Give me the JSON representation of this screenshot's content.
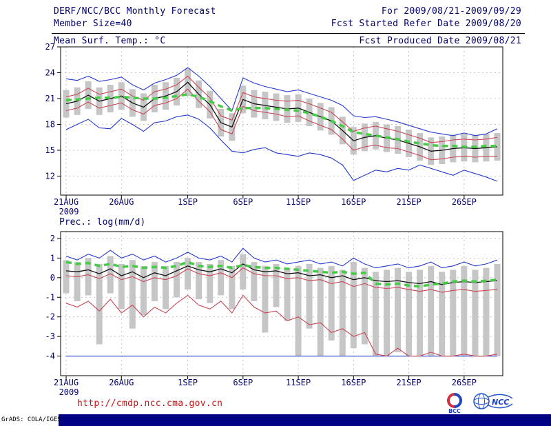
{
  "header": {
    "title": "DERF/NCC/BCC Monthly Forecast",
    "period": "For 2009/08/21-2009/09/29",
    "member_size": "Member Size=40",
    "refer_date": "Fcst Started Refer Date 2009/08/20",
    "produced_date": "Fcst Produced Date 2009/08/21"
  },
  "footer": {
    "url": "http://cmdp.ncc.cma.gov.cn",
    "grads_credit": "GrADS: COLA/IGES",
    "logos": [
      {
        "label": "BCC"
      },
      {
        "label": "NCC"
      }
    ]
  },
  "colors": {
    "text_navy": "#00006b",
    "line_blue": "#2438cc",
    "line_red": "#c84455",
    "line_black": "#111111",
    "line_green": "#44cc44",
    "bar_gray": "#c6c6c6",
    "url_red": "#cc1111",
    "bottom_bar_navy": "#000085"
  },
  "chart_data": [
    {
      "type": "line",
      "panel_name": "temperature-panel",
      "title": "Mean Surf. Temp.: °C",
      "ylabel": "°C",
      "ylim": [
        9.8,
        27
      ],
      "y_ticks": [
        27,
        24,
        21,
        18,
        15,
        12
      ],
      "n_days": 40,
      "x_tick_labels": [
        "21AUG",
        "26AUG",
        "1SEP",
        "6SEP",
        "11SEP",
        "16SEP",
        "21SEP",
        "26SEP"
      ],
      "x_tick_days": [
        0,
        5,
        11,
        16,
        21,
        26,
        31,
        36
      ],
      "year_label": "2009",
      "grid": true,
      "bars": {
        "color": "#c6c6c6",
        "top": [
          22.0,
          22.3,
          23.0,
          22.3,
          22.6,
          22.9,
          22.1,
          21.6,
          22.6,
          22.9,
          23.4,
          24.5,
          23.1,
          21.9,
          19.8,
          19.3,
          22.5,
          22.0,
          21.8,
          21.6,
          21.4,
          21.5,
          21.0,
          20.5,
          20.0,
          18.9,
          17.7,
          18.1,
          18.3,
          18.0,
          17.8,
          17.4,
          17.0,
          16.5,
          16.6,
          16.8,
          16.9,
          16.8,
          16.9,
          17.0
        ],
        "bottom": [
          18.8,
          19.1,
          19.8,
          19.1,
          19.4,
          19.7,
          18.9,
          18.4,
          19.4,
          19.7,
          20.2,
          21.3,
          19.9,
          18.7,
          16.6,
          16.1,
          19.3,
          18.8,
          18.6,
          18.4,
          18.2,
          18.3,
          17.8,
          17.3,
          16.8,
          15.7,
          14.5,
          14.9,
          15.1,
          14.8,
          14.6,
          14.2,
          13.8,
          13.3,
          13.4,
          13.6,
          13.7,
          13.6,
          13.7,
          13.8
        ]
      },
      "series": [
        {
          "name": "ensemble-max-line",
          "color": "#2438cc",
          "width": 1.1,
          "dash": "",
          "values": [
            23.3,
            23.1,
            23.6,
            23.0,
            23.2,
            23.5,
            22.6,
            22.0,
            22.8,
            23.2,
            23.7,
            24.6,
            23.6,
            22.4,
            21.0,
            19.6,
            23.4,
            22.8,
            22.4,
            22.1,
            21.8,
            22.0,
            21.6,
            21.2,
            20.8,
            20.2,
            19.0,
            18.8,
            18.9,
            18.6,
            18.3,
            17.9,
            17.5,
            17.1,
            16.9,
            16.7,
            17.0,
            16.7,
            16.9,
            17.5
          ]
        },
        {
          "name": "ensemble-min-line",
          "color": "#2438cc",
          "width": 1.1,
          "dash": "",
          "values": [
            17.4,
            18.0,
            18.6,
            17.6,
            17.5,
            18.7,
            18.0,
            17.2,
            18.2,
            18.4,
            18.9,
            19.1,
            18.6,
            17.6,
            16.2,
            14.9,
            14.7,
            15.1,
            15.3,
            14.7,
            14.5,
            14.3,
            14.7,
            14.5,
            14.1,
            13.3,
            11.5,
            12.1,
            12.7,
            12.5,
            12.9,
            12.7,
            13.3,
            12.9,
            12.5,
            12.1,
            12.7,
            12.3,
            11.9,
            11.4
          ]
        },
        {
          "name": "upper-spread-line",
          "color": "#c84455",
          "width": 1.1,
          "dash": "",
          "values": [
            21.2,
            21.5,
            22.2,
            21.5,
            21.8,
            22.1,
            21.3,
            20.8,
            21.8,
            22.1,
            22.6,
            23.6,
            22.3,
            21.1,
            19.0,
            18.5,
            21.7,
            21.2,
            21.0,
            20.8,
            20.7,
            20.8,
            20.4,
            19.9,
            19.4,
            18.3,
            17.2,
            17.6,
            17.8,
            17.5,
            17.2,
            16.8,
            16.4,
            15.9,
            16.0,
            16.2,
            16.3,
            16.2,
            16.3,
            16.5
          ]
        },
        {
          "name": "lower-spread-line",
          "color": "#c84455",
          "width": 1.1,
          "dash": "",
          "values": [
            19.6,
            19.9,
            20.6,
            19.9,
            20.2,
            20.5,
            19.7,
            19.2,
            20.2,
            20.5,
            21.0,
            22.1,
            20.7,
            19.5,
            17.4,
            16.9,
            20.1,
            19.6,
            19.4,
            19.2,
            18.9,
            19.0,
            18.4,
            17.9,
            17.4,
            16.3,
            15.0,
            15.4,
            15.6,
            15.3,
            15.2,
            14.8,
            14.4,
            13.9,
            14.0,
            14.2,
            14.3,
            14.2,
            14.3,
            14.3
          ]
        },
        {
          "name": "ensemble-mean-line",
          "color": "#111111",
          "width": 1.3,
          "dash": "",
          "values": [
            20.4,
            20.7,
            21.4,
            20.7,
            21.0,
            21.3,
            20.5,
            20.0,
            21.0,
            21.3,
            21.8,
            22.9,
            21.5,
            20.3,
            18.2,
            17.7,
            20.9,
            20.4,
            20.2,
            20.0,
            19.8,
            19.9,
            19.4,
            18.9,
            18.4,
            17.3,
            16.1,
            16.5,
            16.7,
            16.4,
            16.2,
            15.8,
            15.4,
            14.9,
            15.0,
            15.2,
            15.3,
            15.2,
            15.3,
            15.4
          ]
        },
        {
          "name": "climatology-dashed-line",
          "color": "#44cc44",
          "width": 3.5,
          "dash": "8,6",
          "values": [
            20.8,
            20.9,
            21.0,
            21.1,
            21.1,
            21.2,
            21.1,
            21.0,
            21.0,
            21.1,
            21.3,
            21.5,
            21.2,
            20.7,
            20.1,
            19.6,
            19.9,
            19.9,
            19.9,
            19.8,
            19.7,
            19.6,
            19.3,
            18.9,
            18.4,
            17.8,
            17.1,
            16.9,
            16.7,
            16.5,
            16.3,
            16.0,
            15.8,
            15.6,
            15.5,
            15.5,
            15.4,
            15.4,
            15.5,
            15.5
          ]
        }
      ]
    },
    {
      "type": "line",
      "panel_name": "precipitation-panel",
      "title": "Prec.: log(mm/d)",
      "ylabel": "log(mm/d)",
      "ylim": [
        -5,
        2.35
      ],
      "y_ticks": [
        2,
        1,
        0,
        -1,
        -2,
        -3,
        -4
      ],
      "n_days": 40,
      "x_tick_labels": [
        "21AUG",
        "26AUG",
        "1SEP",
        "6SEP",
        "11SEP",
        "16SEP",
        "21SEP",
        "26SEP"
      ],
      "x_tick_days": [
        0,
        5,
        11,
        16,
        21,
        26,
        31,
        36
      ],
      "year_label": "2009",
      "grid": true,
      "bars": {
        "color": "#c6c6c6",
        "top": [
          0.9,
          0.8,
          1.0,
          0.7,
          1.1,
          0.7,
          0.9,
          0.6,
          0.8,
          0.6,
          0.8,
          1.0,
          0.8,
          0.7,
          0.9,
          0.6,
          1.2,
          0.8,
          0.6,
          0.7,
          0.5,
          0.6,
          0.7,
          0.5,
          0.6,
          0.4,
          0.8,
          0.5,
          0.3,
          0.4,
          0.5,
          0.3,
          0.4,
          0.6,
          0.3,
          0.4,
          0.6,
          0.4,
          0.5,
          0.7
        ],
        "bottom": [
          -0.8,
          -1.2,
          -0.9,
          -3.4,
          -0.8,
          -1.6,
          -2.6,
          -1.9,
          -1.2,
          -1.6,
          -1.0,
          -0.6,
          -1.1,
          -1.3,
          -0.9,
          -1.6,
          -0.6,
          -1.2,
          -2.8,
          -1.5,
          -2.2,
          -4.0,
          -2.6,
          -4.0,
          -3.2,
          -4.0,
          -3.6,
          -3.4,
          -4.0,
          -4.0,
          -3.8,
          -4.0,
          -4.0,
          -4.0,
          -4.0,
          -4.0,
          -4.0,
          -4.0,
          -4.0,
          -4.0
        ]
      },
      "series": [
        {
          "name": "ensemble-max-line",
          "color": "#2438cc",
          "width": 1.1,
          "dash": "",
          "values": [
            1.1,
            0.9,
            1.2,
            1.0,
            1.4,
            1.0,
            1.2,
            0.9,
            1.1,
            0.8,
            1.0,
            1.3,
            1.0,
            0.9,
            1.1,
            0.8,
            1.5,
            1.0,
            0.8,
            0.9,
            0.7,
            0.8,
            0.9,
            0.7,
            0.8,
            0.6,
            1.0,
            0.7,
            0.5,
            0.6,
            0.7,
            0.5,
            0.6,
            0.8,
            0.5,
            0.6,
            0.8,
            0.6,
            0.7,
            0.9
          ]
        },
        {
          "name": "ensemble-min-line",
          "color": "#2438cc",
          "width": 1.1,
          "dash": "",
          "values": [
            -4.0,
            -4.0,
            -4.0,
            -4.0,
            -4.0,
            -4.0,
            -4.0,
            -4.0,
            -4.0,
            -4.0,
            -4.0,
            -4.0,
            -4.0,
            -4.0,
            -4.0,
            -4.0,
            -4.0,
            -4.0,
            -4.0,
            -4.0,
            -4.0,
            -4.0,
            -4.0,
            -4.0,
            -4.0,
            -4.0,
            -4.0,
            -4.0,
            -4.0,
            -4.0,
            -4.0,
            -4.0,
            -4.0,
            -4.0,
            -4.0,
            -4.0,
            -4.0,
            -4.0,
            -4.0,
            -4.0
          ]
        },
        {
          "name": "upper-spread-line",
          "color": "#c84455",
          "width": 1.1,
          "dash": "",
          "values": [
            0.1,
            0.05,
            0.15,
            -0.05,
            0.2,
            -0.1,
            0.05,
            -0.2,
            0.0,
            -0.1,
            0.1,
            0.45,
            0.2,
            0.1,
            0.25,
            0.0,
            0.5,
            0.2,
            0.1,
            0.1,
            -0.05,
            0.0,
            -0.15,
            -0.1,
            -0.3,
            -0.2,
            -0.45,
            -0.3,
            -0.5,
            -0.55,
            -0.5,
            -0.6,
            -0.7,
            -0.6,
            -0.75,
            -0.65,
            -0.6,
            -0.7,
            -0.65,
            -0.6
          ]
        },
        {
          "name": "lower-spread-line",
          "color": "#c84455",
          "width": 1.1,
          "dash": "",
          "values": [
            -1.3,
            -1.5,
            -1.2,
            -1.7,
            -1.1,
            -1.8,
            -1.4,
            -2.0,
            -1.5,
            -1.8,
            -1.3,
            -0.9,
            -1.4,
            -1.6,
            -1.2,
            -1.8,
            -0.9,
            -1.5,
            -1.8,
            -1.7,
            -2.2,
            -2.0,
            -2.4,
            -2.3,
            -2.8,
            -2.6,
            -3.0,
            -2.8,
            -3.9,
            -4.0,
            -3.6,
            -4.0,
            -4.0,
            -3.8,
            -4.0,
            -4.0,
            -3.9,
            -4.0,
            -4.0,
            -3.9
          ]
        },
        {
          "name": "ensemble-mean-line",
          "color": "#111111",
          "width": 1.3,
          "dash": "",
          "values": [
            0.35,
            0.3,
            0.4,
            0.2,
            0.45,
            0.1,
            0.3,
            0.0,
            0.25,
            0.1,
            0.35,
            0.6,
            0.4,
            0.3,
            0.45,
            0.25,
            0.7,
            0.4,
            0.3,
            0.35,
            0.2,
            0.25,
            0.1,
            0.15,
            0.0,
            0.1,
            -0.1,
            0.0,
            -0.15,
            -0.2,
            -0.15,
            -0.25,
            -0.3,
            -0.2,
            -0.35,
            -0.25,
            -0.2,
            -0.25,
            -0.2,
            -0.15
          ]
        },
        {
          "name": "climatology-dashed-line",
          "color": "#44cc44",
          "width": 3.5,
          "dash": "8,6",
          "values": [
            0.8,
            0.7,
            0.75,
            0.6,
            0.7,
            0.55,
            0.6,
            0.5,
            0.55,
            0.5,
            0.6,
            0.8,
            0.6,
            0.55,
            0.6,
            0.5,
            0.65,
            0.55,
            0.5,
            0.5,
            0.45,
            0.4,
            0.35,
            0.3,
            0.25,
            0.3,
            0.2,
            0.25,
            -0.3,
            -0.35,
            -0.3,
            -0.4,
            -0.45,
            -0.35,
            -0.3,
            -0.2,
            -0.15,
            -0.2,
            -0.15,
            -0.1
          ]
        }
      ]
    }
  ]
}
